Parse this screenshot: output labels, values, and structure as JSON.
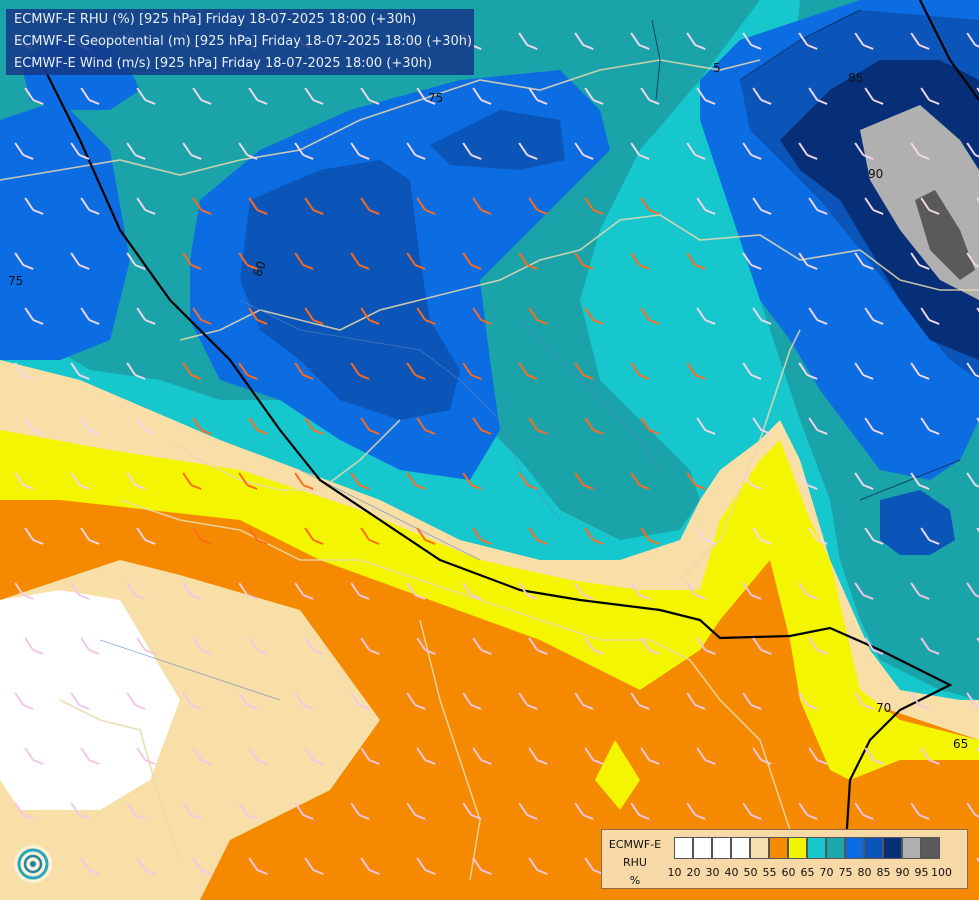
{
  "header": {
    "line1": "ECMWF-E RHU (%) [925 hPa] Friday 18-07-2025 18:00 (+30h)",
    "line2": "ECMWF-E Geopotential (m) [925 hPa] Friday 18-07-2025 18:00 (+30h)",
    "line3": "ECMWF-E Wind (m/s) [925 hPa] Friday 18-07-2025 18:00 (+30h)"
  },
  "legend": {
    "title1": "ECMWF-E",
    "title2": "RHU",
    "title3": "%",
    "colors": [
      "#ffffff",
      "#ffffff",
      "#ffffff",
      "#ffffff",
      "#f7e0ae",
      "#f58a00",
      "#f2f501",
      "#17c8cf",
      "#1aa6ab",
      "#0c6be2",
      "#0b55b8",
      "#062f78",
      "#b0b0b0",
      "#5a5a5a"
    ],
    "ticks": [
      "10",
      "20",
      "30",
      "40",
      "50",
      "55",
      "60",
      "65",
      "70",
      "75",
      "80",
      "85",
      "90",
      "95",
      "100"
    ]
  },
  "contours": {
    "c75": "75",
    "c80": "80",
    "c85": "85",
    "c90": "90",
    "c70": "70",
    "c65": "65",
    "c75b": "75",
    "c5": "5"
  }
}
